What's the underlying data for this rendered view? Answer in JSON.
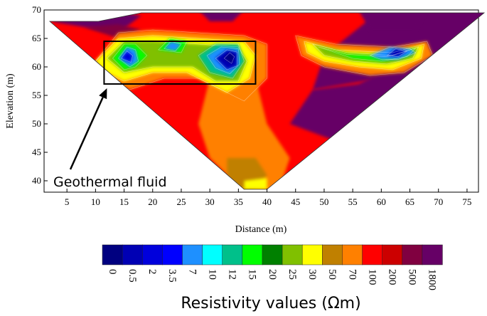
{
  "chart_data": {
    "type": "heatmap",
    "title": "",
    "xlabel": "Distance (m)",
    "ylabel": "Elevation (m)",
    "xlim": [
      1,
      77
    ],
    "ylim": [
      38,
      70
    ],
    "x_ticks": [
      5,
      10,
      15,
      20,
      25,
      30,
      35,
      40,
      45,
      50,
      55,
      60,
      65,
      70,
      75
    ],
    "y_ticks": [
      40,
      45,
      50,
      55,
      60,
      65,
      70
    ],
    "x_tick_labels": [
      "5",
      "10",
      "15",
      "20",
      "25",
      "30",
      "35",
      "40",
      "45",
      "50",
      "55",
      "60",
      "65",
      "70",
      "75"
    ],
    "y_tick_labels": [
      "40",
      "45",
      "50",
      "55",
      "60",
      "65",
      "70"
    ],
    "section_outline": [
      [
        2,
        68
      ],
      [
        10.5,
        68
      ],
      [
        18,
        69.5
      ],
      [
        78,
        69.5
      ],
      [
        40,
        38.5
      ],
      [
        36,
        38.5
      ]
    ],
    "low_resistivity_zones": [
      {
        "x": 15,
        "y": 61,
        "value": 2
      },
      {
        "x": 23,
        "y": 63.5,
        "value": 5
      },
      {
        "x": 33.5,
        "y": 61,
        "value": 1
      },
      {
        "x": 63,
        "y": 62.5,
        "value": 7
      },
      {
        "x": 66,
        "y": 63.5,
        "value": 10
      },
      {
        "x": 53,
        "y": 63,
        "value": 25
      }
    ],
    "highlight_box": {
      "x": [
        11.5,
        38
      ],
      "y": [
        57,
        64.5
      ]
    },
    "annotations": [
      {
        "text": "Geothermal fluid",
        "arrow_to": {
          "x": 12,
          "y": 57
        }
      }
    ],
    "colorbar": {
      "label": "Resistivity values (Ωm)",
      "colors": [
        "#000080",
        "#0000b4",
        "#0000dc",
        "#0000ff",
        "#1e90ff",
        "#00ffff",
        "#00c08a",
        "#00ff00",
        "#008000",
        "#80c000",
        "#ffff00",
        "#c08000",
        "#ff8000",
        "#ff0000",
        "#cc0000",
        "#800040",
        "#660066"
      ],
      "tick_labels": [
        "0",
        "0.5",
        "2",
        "3.5",
        "7",
        "10",
        "12",
        "15",
        "20",
        "25",
        "30",
        "50",
        "70",
        "100",
        "200",
        "500",
        "1800"
      ]
    }
  }
}
